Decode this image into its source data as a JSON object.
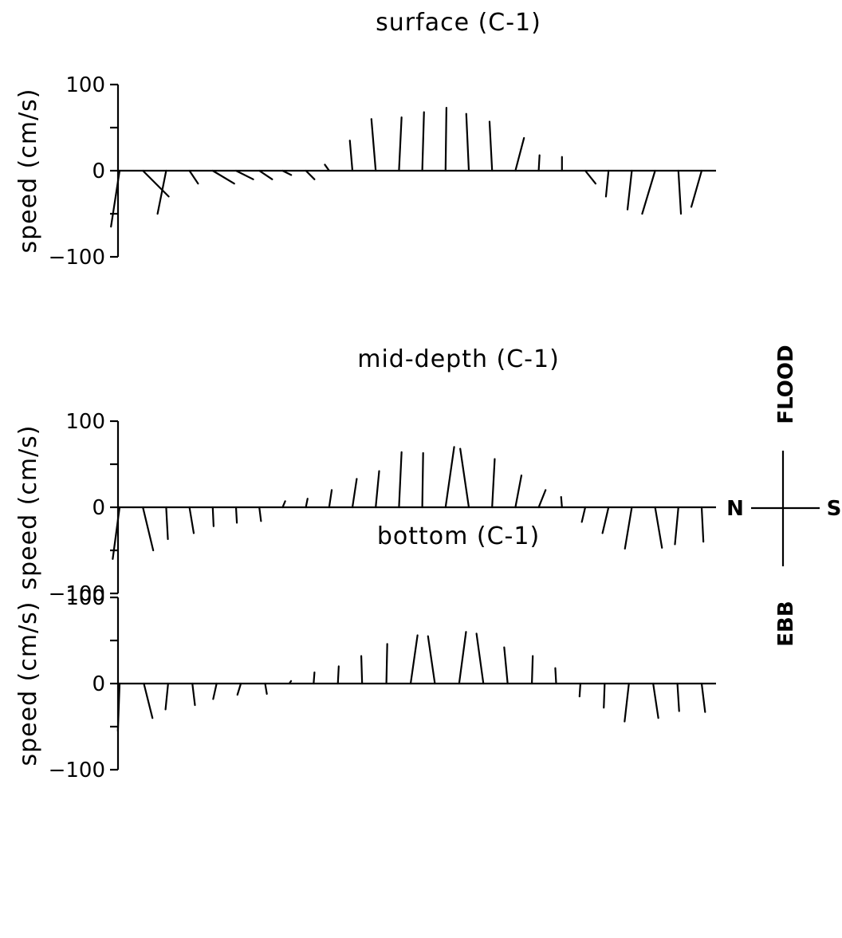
{
  "chart_data": [
    {
      "type": "stick",
      "title": "surface (C-1)",
      "ylabel": "speed (cm/s)",
      "yticks": [
        "100",
        "0",
        "-100"
      ],
      "ylim": [
        -100,
        100
      ],
      "sticks": [
        {
          "ns": -10,
          "v": -65
        },
        {
          "ns": 30,
          "v": -30
        },
        {
          "ns": -10,
          "v": -50
        },
        {
          "ns": 10,
          "v": -15
        },
        {
          "ns": 25,
          "v": -15
        },
        {
          "ns": 20,
          "v": -10
        },
        {
          "ns": 15,
          "v": -10
        },
        {
          "ns": 10,
          "v": -5
        },
        {
          "ns": 10,
          "v": -10
        },
        {
          "ns": -5,
          "v": 7
        },
        {
          "ns": -3,
          "v": 35
        },
        {
          "ns": -5,
          "v": 60
        },
        {
          "ns": 3,
          "v": 62
        },
        {
          "ns": 2,
          "v": 68
        },
        {
          "ns": 1,
          "v": 73
        },
        {
          "ns": -3,
          "v": 66
        },
        {
          "ns": -3,
          "v": 57
        },
        {
          "ns": 10,
          "v": 38
        },
        {
          "ns": 1,
          "v": 18
        },
        {
          "ns": 0,
          "v": 16
        },
        {
          "ns": 12,
          "v": -15
        },
        {
          "ns": -3,
          "v": -30
        },
        {
          "ns": -5,
          "v": -45
        },
        {
          "ns": -15,
          "v": -50
        },
        {
          "ns": 3,
          "v": -50
        },
        {
          "ns": -12,
          "v": -42
        }
      ]
    },
    {
      "type": "stick",
      "title": "mid-depth (C-1)",
      "ylabel": "speed (cm/s)",
      "yticks": [
        "100",
        "0",
        "-100"
      ],
      "ylim": [
        -100,
        100
      ],
      "sticks": [
        {
          "ns": -8,
          "v": -60
        },
        {
          "ns": 12,
          "v": -50
        },
        {
          "ns": 2,
          "v": -37
        },
        {
          "ns": 5,
          "v": -30
        },
        {
          "ns": 1,
          "v": -22
        },
        {
          "ns": 1,
          "v": -18
        },
        {
          "ns": 2,
          "v": -16
        },
        {
          "ns": 3,
          "v": 7
        },
        {
          "ns": 2,
          "v": 10
        },
        {
          "ns": 3,
          "v": 20
        },
        {
          "ns": 5,
          "v": 33
        },
        {
          "ns": 4,
          "v": 42
        },
        {
          "ns": 3,
          "v": 64
        },
        {
          "ns": 1,
          "v": 63
        },
        {
          "ns": 10,
          "v": 70
        },
        {
          "ns": -10,
          "v": 68
        },
        {
          "ns": 3,
          "v": 56
        },
        {
          "ns": 7,
          "v": 37
        },
        {
          "ns": 8,
          "v": 20
        },
        {
          "ns": -1,
          "v": 12
        },
        {
          "ns": -4,
          "v": -17
        },
        {
          "ns": -7,
          "v": -30
        },
        {
          "ns": -8,
          "v": -48
        },
        {
          "ns": 8,
          "v": -47
        },
        {
          "ns": -4,
          "v": -43
        },
        {
          "ns": 2,
          "v": -40
        }
      ]
    },
    {
      "type": "stick",
      "title": "bottom (C-1)",
      "ylabel": "speed (cm/s)",
      "yticks": [
        "100",
        "0",
        "-100"
      ],
      "ylim": [
        -100,
        100
      ],
      "sticks": [
        {
          "ns": -2,
          "v": -55
        },
        {
          "ns": 10,
          "v": -40
        },
        {
          "ns": -3,
          "v": -30
        },
        {
          "ns": 3,
          "v": -25
        },
        {
          "ns": -4,
          "v": -18
        },
        {
          "ns": -4,
          "v": -13
        },
        {
          "ns": 2,
          "v": -12
        },
        {
          "ns": 2,
          "v": 3
        },
        {
          "ns": 1,
          "v": 13
        },
        {
          "ns": 1,
          "v": 20
        },
        {
          "ns": -1,
          "v": 32
        },
        {
          "ns": 1,
          "v": 46
        },
        {
          "ns": 8,
          "v": 56
        },
        {
          "ns": -8,
          "v": 55
        },
        {
          "ns": 8,
          "v": 60
        },
        {
          "ns": -8,
          "v": 58
        },
        {
          "ns": -4,
          "v": 42
        },
        {
          "ns": 1,
          "v": 32
        },
        {
          "ns": -1,
          "v": 18
        },
        {
          "ns": -1,
          "v": -15
        },
        {
          "ns": -1,
          "v": -28
        },
        {
          "ns": -5,
          "v": -44
        },
        {
          "ns": 6,
          "v": -40
        },
        {
          "ns": 2,
          "v": -32
        },
        {
          "ns": 4,
          "v": -33
        }
      ]
    }
  ],
  "compass": {
    "top": "FLOOD",
    "bottom": "EBB",
    "left": "N",
    "right": "S"
  }
}
